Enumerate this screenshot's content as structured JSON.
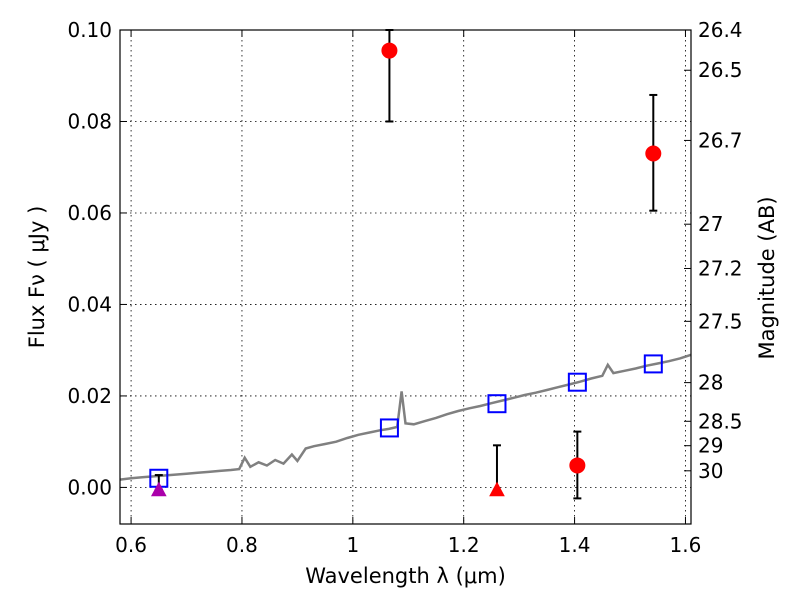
{
  "chart_data": {
    "type": "scatter",
    "xlabel": "Wavelength  λ (μm)",
    "ylabel": "Flux  Fν  ( μJy )",
    "y2label": "Magnitude (AB)",
    "xlim": [
      0.58,
      1.61
    ],
    "ylim": [
      -0.008,
      0.1
    ],
    "grid": true,
    "xticks": [
      {
        "v": 0.6,
        "label": "0.6"
      },
      {
        "v": 0.8,
        "label": "0.8"
      },
      {
        "v": 1.0,
        "label": "1"
      },
      {
        "v": 1.2,
        "label": "1.2"
      },
      {
        "v": 1.4,
        "label": "1.4"
      },
      {
        "v": 1.6,
        "label": "1.6"
      }
    ],
    "yticks": [
      {
        "v": 0.0,
        "label": "0.00"
      },
      {
        "v": 0.02,
        "label": "0.02"
      },
      {
        "v": 0.04,
        "label": "0.04"
      },
      {
        "v": 0.06,
        "label": "0.06"
      },
      {
        "v": 0.08,
        "label": "0.08"
      },
      {
        "v": 0.1,
        "label": "0.10"
      }
    ],
    "mag_ticks": [
      {
        "mag": 26.4,
        "label": "26.4"
      },
      {
        "mag": 26.5,
        "label": "26.5"
      },
      {
        "mag": 26.7,
        "label": "26.7"
      },
      {
        "mag": 27.0,
        "label": "27"
      },
      {
        "mag": 27.2,
        "label": "27.2"
      },
      {
        "mag": 27.5,
        "label": "27.5"
      },
      {
        "mag": 28.0,
        "label": "28"
      },
      {
        "mag": 28.5,
        "label": "28.5"
      },
      {
        "mag": 29.0,
        "label": "29"
      },
      {
        "mag": 30.0,
        "label": "30"
      }
    ],
    "colors": {
      "detection": "#ff0000",
      "upper_limit_red": "#ff0000",
      "upper_limit_purple": "#aa00aa",
      "model_points": "#0000ff",
      "template": "#808080"
    },
    "series": [
      {
        "kind": "detection",
        "points": [
          {
            "x": 1.066,
            "y": 0.0955,
            "err_lo": 0.08,
            "err_hi": 0.1
          },
          {
            "x": 1.542,
            "y": 0.073,
            "err_lo": 0.0605,
            "err_hi": 0.0858
          },
          {
            "x": 1.405,
            "y": 0.0048,
            "err_lo": -0.0024,
            "err_hi": 0.0122
          }
        ]
      },
      {
        "kind": "upper_limit",
        "points": [
          {
            "x": 1.26,
            "y": -0.0005,
            "err_lo": -0.0005,
            "err_hi": 0.0092,
            "color": "upper_limit_red"
          },
          {
            "x": 0.65,
            "y": -0.0005,
            "err_lo": -0.0005,
            "err_hi": 0.0027,
            "color": "upper_limit_purple"
          }
        ]
      },
      {
        "kind": "model_points",
        "points": [
          {
            "x": 0.65,
            "y": 0.002
          },
          {
            "x": 1.066,
            "y": 0.013
          },
          {
            "x": 1.26,
            "y": 0.0183
          },
          {
            "x": 1.405,
            "y": 0.023
          },
          {
            "x": 1.542,
            "y": 0.027
          }
        ]
      },
      {
        "kind": "template",
        "points": [
          [
            0.58,
            0.0017
          ],
          [
            0.6,
            0.002
          ],
          [
            0.62,
            0.0022
          ],
          [
            0.64,
            0.0024
          ],
          [
            0.66,
            0.0026
          ],
          [
            0.68,
            0.0028
          ],
          [
            0.7,
            0.003
          ],
          [
            0.72,
            0.0032
          ],
          [
            0.74,
            0.0034
          ],
          [
            0.76,
            0.0036
          ],
          [
            0.78,
            0.0038
          ],
          [
            0.795,
            0.004
          ],
          [
            0.805,
            0.0065
          ],
          [
            0.815,
            0.0045
          ],
          [
            0.83,
            0.0055
          ],
          [
            0.845,
            0.0048
          ],
          [
            0.86,
            0.006
          ],
          [
            0.875,
            0.0052
          ],
          [
            0.89,
            0.0072
          ],
          [
            0.9,
            0.0058
          ],
          [
            0.915,
            0.0085
          ],
          [
            0.93,
            0.009
          ],
          [
            0.95,
            0.0095
          ],
          [
            0.97,
            0.01
          ],
          [
            0.99,
            0.0108
          ],
          [
            1.01,
            0.0115
          ],
          [
            1.03,
            0.012
          ],
          [
            1.05,
            0.0125
          ],
          [
            1.065,
            0.0128
          ],
          [
            1.08,
            0.0132
          ],
          [
            1.088,
            0.021
          ],
          [
            1.095,
            0.014
          ],
          [
            1.11,
            0.0138
          ],
          [
            1.13,
            0.0145
          ],
          [
            1.15,
            0.0152
          ],
          [
            1.17,
            0.016
          ],
          [
            1.19,
            0.0167
          ],
          [
            1.21,
            0.0173
          ],
          [
            1.23,
            0.0178
          ],
          [
            1.25,
            0.0184
          ],
          [
            1.27,
            0.019
          ],
          [
            1.29,
            0.0196
          ],
          [
            1.31,
            0.0202
          ],
          [
            1.33,
            0.0207
          ],
          [
            1.35,
            0.0213
          ],
          [
            1.37,
            0.0219
          ],
          [
            1.39,
            0.0225
          ],
          [
            1.41,
            0.0231
          ],
          [
            1.43,
            0.0238
          ],
          [
            1.45,
            0.0244
          ],
          [
            1.46,
            0.0268
          ],
          [
            1.47,
            0.025
          ],
          [
            1.49,
            0.0255
          ],
          [
            1.51,
            0.026
          ],
          [
            1.53,
            0.0266
          ],
          [
            1.55,
            0.0271
          ],
          [
            1.57,
            0.0276
          ],
          [
            1.59,
            0.0282
          ],
          [
            1.61,
            0.029
          ]
        ]
      }
    ]
  }
}
